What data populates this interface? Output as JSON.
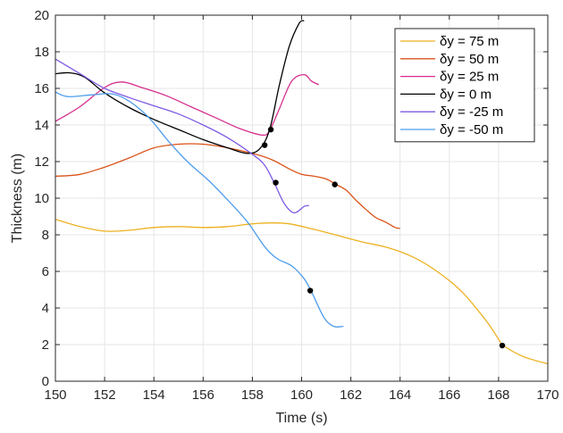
{
  "chart_data": {
    "type": "line",
    "title": "",
    "xlabel": "Time (s)",
    "ylabel": "Thickness (m)",
    "xlim": [
      150,
      170
    ],
    "ylim": [
      0,
      20
    ],
    "xticks": [
      150,
      152,
      154,
      156,
      158,
      160,
      162,
      164,
      166,
      168,
      170
    ],
    "yticks": [
      0,
      2,
      4,
      6,
      8,
      10,
      12,
      14,
      16,
      18,
      20
    ],
    "xtick_labels": [
      "150",
      "152",
      "154",
      "156",
      "158",
      "160",
      "162",
      "164",
      "166",
      "168",
      "170"
    ],
    "ytick_labels": [
      "0",
      "2",
      "4",
      "6",
      "8",
      "10",
      "12",
      "14",
      "16",
      "18",
      "20"
    ],
    "grid": true,
    "legend_position": "top-right",
    "series": [
      {
        "name": "δy = 75 m",
        "color": "#EDB120",
        "x": [
          150,
          151,
          152,
          153,
          154,
          155,
          156,
          157,
          158,
          158.8,
          159.5,
          160.5,
          161.5,
          162.5,
          163.5,
          164.5,
          165.5,
          166.5,
          167.5,
          168,
          168.2,
          169,
          170
        ],
        "y": [
          8.85,
          8.45,
          8.2,
          8.25,
          8.4,
          8.45,
          8.4,
          8.45,
          8.6,
          8.65,
          8.6,
          8.3,
          7.95,
          7.6,
          7.3,
          6.8,
          6.0,
          4.9,
          3.3,
          2.3,
          1.95,
          1.35,
          0.95
        ]
      },
      {
        "name": "δy = 50 m",
        "color": "#D95319",
        "x": [
          150,
          151,
          152,
          153,
          154,
          155,
          156,
          157,
          158,
          158.8,
          159.5,
          160,
          160.5,
          161,
          161.4,
          161.8,
          162.2,
          162.6,
          163,
          163.4,
          163.8,
          164
        ],
        "y": [
          11.2,
          11.3,
          11.7,
          12.2,
          12.75,
          12.95,
          12.95,
          12.75,
          12.45,
          12.1,
          11.6,
          11.3,
          11.2,
          11.05,
          10.75,
          10.45,
          9.9,
          9.4,
          8.95,
          8.7,
          8.4,
          8.35
        ]
      },
      {
        "name": "δy = 25 m",
        "color": "#D62F8E",
        "x": [
          150,
          151,
          152,
          152.7,
          153.5,
          154.5,
          155.5,
          156.5,
          157.5,
          158.4,
          158.7,
          159.1,
          159.6,
          160.1,
          160.4,
          160.7
        ],
        "y": [
          14.2,
          15.0,
          16.05,
          16.35,
          16.05,
          15.6,
          15.0,
          14.4,
          13.8,
          13.45,
          13.7,
          14.9,
          16.4,
          16.75,
          16.4,
          16.2
        ]
      },
      {
        "name": "δy = 0 m",
        "color": "#000000",
        "x": [
          150,
          150.6,
          151.2,
          152,
          153,
          154,
          155,
          156,
          157,
          157.8,
          158.3,
          158.7,
          159.1,
          159.5,
          159.9,
          160.1
        ],
        "y": [
          16.8,
          16.85,
          16.6,
          15.75,
          14.95,
          14.3,
          13.75,
          13.2,
          12.75,
          12.45,
          12.7,
          13.75,
          16.2,
          18.3,
          19.55,
          19.7
        ]
      },
      {
        "name": "δy = -25 m",
        "color": "#7E5AE3",
        "x": [
          150,
          151,
          152,
          153,
          154,
          155,
          156,
          157,
          158,
          158.5,
          158.9,
          159.3,
          159.7,
          160.1,
          160.3
        ],
        "y": [
          17.6,
          16.8,
          16.0,
          15.5,
          15.05,
          14.6,
          14.0,
          13.3,
          12.4,
          11.8,
          10.8,
          9.7,
          9.2,
          9.55,
          9.6
        ]
      },
      {
        "name": "δy = -50 m",
        "color": "#4E9DEB",
        "x": [
          150,
          150.5,
          151.5,
          152.3,
          153,
          153.8,
          154.6,
          155.4,
          156.2,
          157,
          157.8,
          158.5,
          159,
          159.6,
          160.1,
          160.4,
          160.9,
          161.3,
          161.7
        ],
        "y": [
          15.8,
          15.55,
          15.65,
          15.7,
          15.3,
          14.4,
          13.1,
          11.95,
          11.0,
          9.9,
          8.7,
          7.35,
          6.7,
          6.3,
          5.6,
          4.9,
          3.5,
          3.0,
          3.0
        ]
      }
    ],
    "markers": [
      {
        "x": 168.15,
        "y": 1.95
      },
      {
        "x": 161.35,
        "y": 10.75
      },
      {
        "x": 158.75,
        "y": 13.75
      },
      {
        "x": 158.5,
        "y": 12.9
      },
      {
        "x": 158.95,
        "y": 10.85
      },
      {
        "x": 160.35,
        "y": 4.95
      }
    ]
  }
}
